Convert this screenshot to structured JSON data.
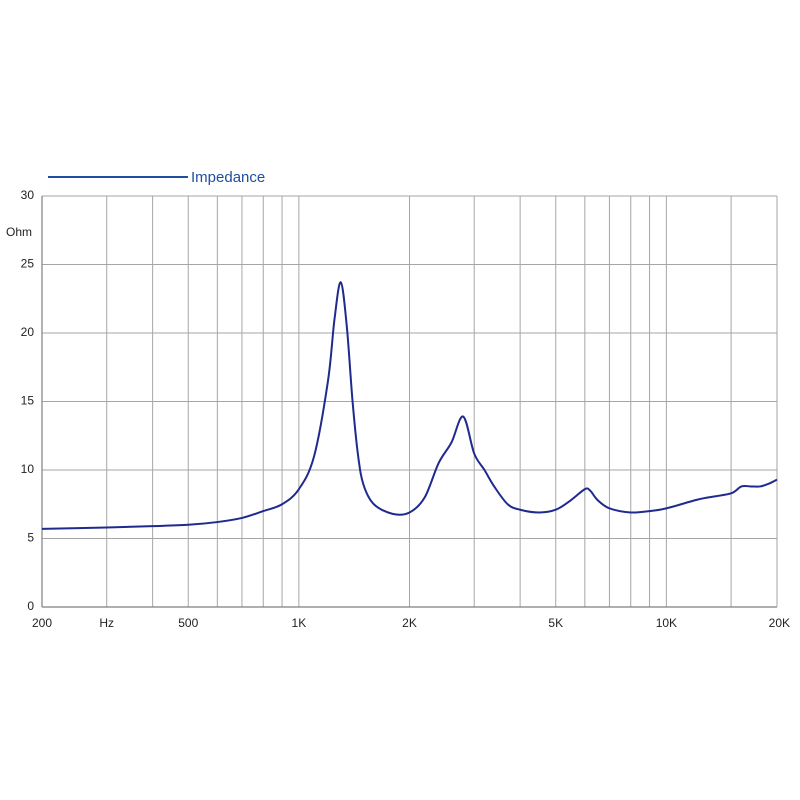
{
  "colors": {
    "background": "#ffffff",
    "grid": "#a6a6a6",
    "axis": "#7f7f7f",
    "series": "#1f2a8f",
    "legend_text": "#1f4fa0",
    "legend_line": "#1f4fa0"
  },
  "chart_data": {
    "type": "line",
    "title": "",
    "xlabel": "",
    "ylabel": "Ohm",
    "x_unit_label": "Hz",
    "x_scale": "log",
    "xlim": [
      200,
      20000
    ],
    "ylim": [
      0,
      30
    ],
    "grid": true,
    "legend_position": "top-left",
    "x_tick_values": [
      200,
      500,
      1000,
      2000,
      5000,
      10000,
      20000
    ],
    "x_tick_labels": [
      "200",
      "500",
      "1K",
      "2K",
      "5K",
      "10K",
      "20K"
    ],
    "x_minor_grid": [
      300,
      400,
      600,
      700,
      800,
      900,
      3000,
      4000,
      6000,
      7000,
      8000,
      9000,
      15000
    ],
    "y_tick_values": [
      0,
      5,
      10,
      15,
      20,
      25,
      30
    ],
    "y_tick_labels": [
      "0",
      "5",
      "10",
      "15",
      "20",
      "25",
      "30"
    ],
    "series": [
      {
        "name": "Impedance",
        "x": [
          200,
          300,
          400,
          500,
          600,
          700,
          800,
          900,
          1000,
          1100,
          1200,
          1250,
          1300,
          1350,
          1400,
          1450,
          1500,
          1600,
          1800,
          2000,
          2200,
          2400,
          2600,
          2800,
          3000,
          3200,
          3400,
          3700,
          4000,
          4500,
          5000,
          5500,
          6000,
          6200,
          6500,
          7000,
          8000,
          9000,
          10000,
          12000,
          13000,
          15000,
          16000,
          17000,
          18000,
          19000,
          20000
        ],
        "y": [
          5.7,
          5.8,
          5.9,
          6.0,
          6.2,
          6.5,
          7.0,
          7.5,
          8.6,
          11.0,
          16.5,
          21.0,
          23.7,
          20.5,
          15.0,
          11.0,
          8.9,
          7.5,
          6.8,
          6.9,
          8.0,
          10.5,
          12.0,
          13.9,
          11.2,
          10.0,
          8.8,
          7.5,
          7.1,
          6.9,
          7.1,
          7.8,
          8.6,
          8.5,
          7.8,
          7.2,
          6.9,
          7.0,
          7.2,
          7.8,
          8.0,
          8.3,
          8.8,
          8.8,
          8.8,
          9.0,
          9.3
        ]
      }
    ]
  }
}
